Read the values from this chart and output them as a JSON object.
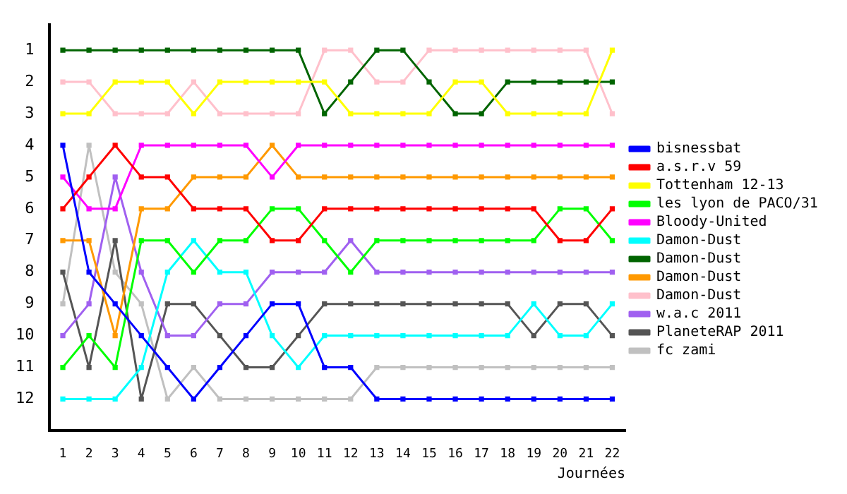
{
  "chart_data": {
    "type": "line",
    "xlabel": "Journées",
    "x": [
      1,
      2,
      3,
      4,
      5,
      6,
      7,
      8,
      9,
      10,
      11,
      12,
      13,
      14,
      15,
      16,
      17,
      18,
      19,
      20,
      21,
      22
    ],
    "series": [
      {
        "name": "bisnessbat",
        "color": "#0000ff",
        "values": [
          4,
          8,
          9,
          10,
          11,
          12,
          11,
          10,
          9,
          9,
          11,
          11,
          12,
          12,
          12,
          12,
          12,
          12,
          12,
          12,
          12,
          12
        ]
      },
      {
        "name": "a.s.r.v 59",
        "color": "#ff0000",
        "values": [
          6,
          5,
          4,
          5,
          5,
          6,
          6,
          6,
          7,
          7,
          6,
          6,
          6,
          6,
          6,
          6,
          6,
          6,
          6,
          7,
          7,
          6
        ]
      },
      {
        "name": "Tottenham 12-13",
        "color": "#ffff00",
        "values": [
          3,
          3,
          2,
          2,
          2,
          3,
          2,
          2,
          2,
          2,
          2,
          3,
          3,
          3,
          3,
          2,
          2,
          3,
          3,
          3,
          3,
          1
        ]
      },
      {
        "name": "les lyon de PACO/31",
        "color": "#00ff00",
        "values": [
          11,
          10,
          11,
          7,
          7,
          8,
          7,
          7,
          6,
          6,
          7,
          8,
          7,
          7,
          7,
          7,
          7,
          7,
          7,
          6,
          6,
          7
        ]
      },
      {
        "name": "Bloody-United",
        "color": "#ff00ff",
        "values": [
          5,
          6,
          6,
          4,
          4,
          4,
          4,
          4,
          5,
          4,
          4,
          4,
          4,
          4,
          4,
          4,
          4,
          4,
          4,
          4,
          4,
          4
        ]
      },
      {
        "name": "Damon-Dust",
        "color": "#00ffff",
        "values": [
          12,
          12,
          12,
          11,
          8,
          7,
          8,
          8,
          10,
          11,
          10,
          10,
          10,
          10,
          10,
          10,
          10,
          10,
          9,
          10,
          10,
          9
        ]
      },
      {
        "name": "Damon-Dust",
        "color": "#006400",
        "values": [
          1,
          1,
          1,
          1,
          1,
          1,
          1,
          1,
          1,
          1,
          3,
          2,
          1,
          1,
          2,
          3,
          3,
          2,
          2,
          2,
          2,
          2
        ]
      },
      {
        "name": "Damon-Dust",
        "color": "#ff9900",
        "values": [
          7,
          7,
          10,
          6,
          6,
          5,
          5,
          5,
          4,
          5,
          5,
          5,
          5,
          5,
          5,
          5,
          5,
          5,
          5,
          5,
          5,
          5
        ]
      },
      {
        "name": "Damon-Dust",
        "color": "#ffc0cb",
        "values": [
          2,
          2,
          3,
          3,
          3,
          2,
          3,
          3,
          3,
          3,
          1,
          1,
          2,
          2,
          1,
          1,
          1,
          1,
          1,
          1,
          1,
          3
        ]
      },
      {
        "name": "w.a.c 2011",
        "color": "#a060f0",
        "values": [
          10,
          9,
          5,
          8,
          10,
          10,
          9,
          9,
          8,
          8,
          8,
          7,
          8,
          8,
          8,
          8,
          8,
          8,
          8,
          8,
          8,
          8
        ]
      },
      {
        "name": "PlaneteRAP 2011",
        "color": "#555555",
        "values": [
          8,
          11,
          7,
          12,
          9,
          9,
          10,
          11,
          11,
          10,
          9,
          9,
          9,
          9,
          9,
          9,
          9,
          9,
          10,
          9,
          9,
          10
        ]
      },
      {
        "name": "fc zami",
        "color": "#c0c0c0",
        "values": [
          9,
          4,
          8,
          9,
          12,
          11,
          12,
          12,
          12,
          12,
          12,
          12,
          11,
          11,
          11,
          11,
          11,
          11,
          11,
          11,
          11,
          11
        ]
      }
    ],
    "xlim": [
      0.5,
      22.5
    ],
    "xticks": [
      1,
      2,
      3,
      4,
      5,
      6,
      7,
      8,
      9,
      10,
      11,
      12,
      13,
      14,
      15,
      16,
      17,
      18,
      19,
      20,
      21,
      22
    ],
    "ylim": [
      13,
      0.2
    ],
    "yticks": [
      1,
      2,
      3,
      4,
      5,
      6,
      7,
      8,
      9,
      10,
      11,
      12
    ],
    "grid": false,
    "legend": "right",
    "marker": "square",
    "line_style": "solid"
  }
}
